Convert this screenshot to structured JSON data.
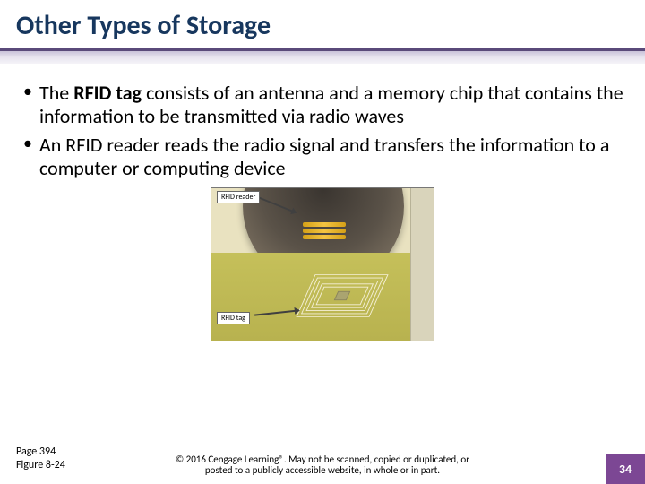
{
  "title": "Other Types of Storage",
  "bullets": [
    {
      "pre": "The ",
      "bold": "RFID tag",
      "post": " consists of an antenna and a memory chip that contains the information to be transmitted via radio waves"
    },
    {
      "pre": "",
      "bold": "",
      "post": "An RFID reader reads the radio signal and transfers the information to a computer or computing device"
    }
  ],
  "figure": {
    "reader_label": "RFID reader",
    "tag_label": "RFID tag"
  },
  "footer": {
    "page_ref": "Page 394",
    "figure_ref": "Figure 8-24",
    "copyright": "© 2016 Cengage Learning®. May not be scanned, copied or duplicated, or posted to a publicly accessible website, in whole or in part."
  },
  "page_number": "34",
  "colors": {
    "title_color": "#17375e",
    "divider_color": "#5a4a7a",
    "badge_bg": "#7c4794"
  }
}
